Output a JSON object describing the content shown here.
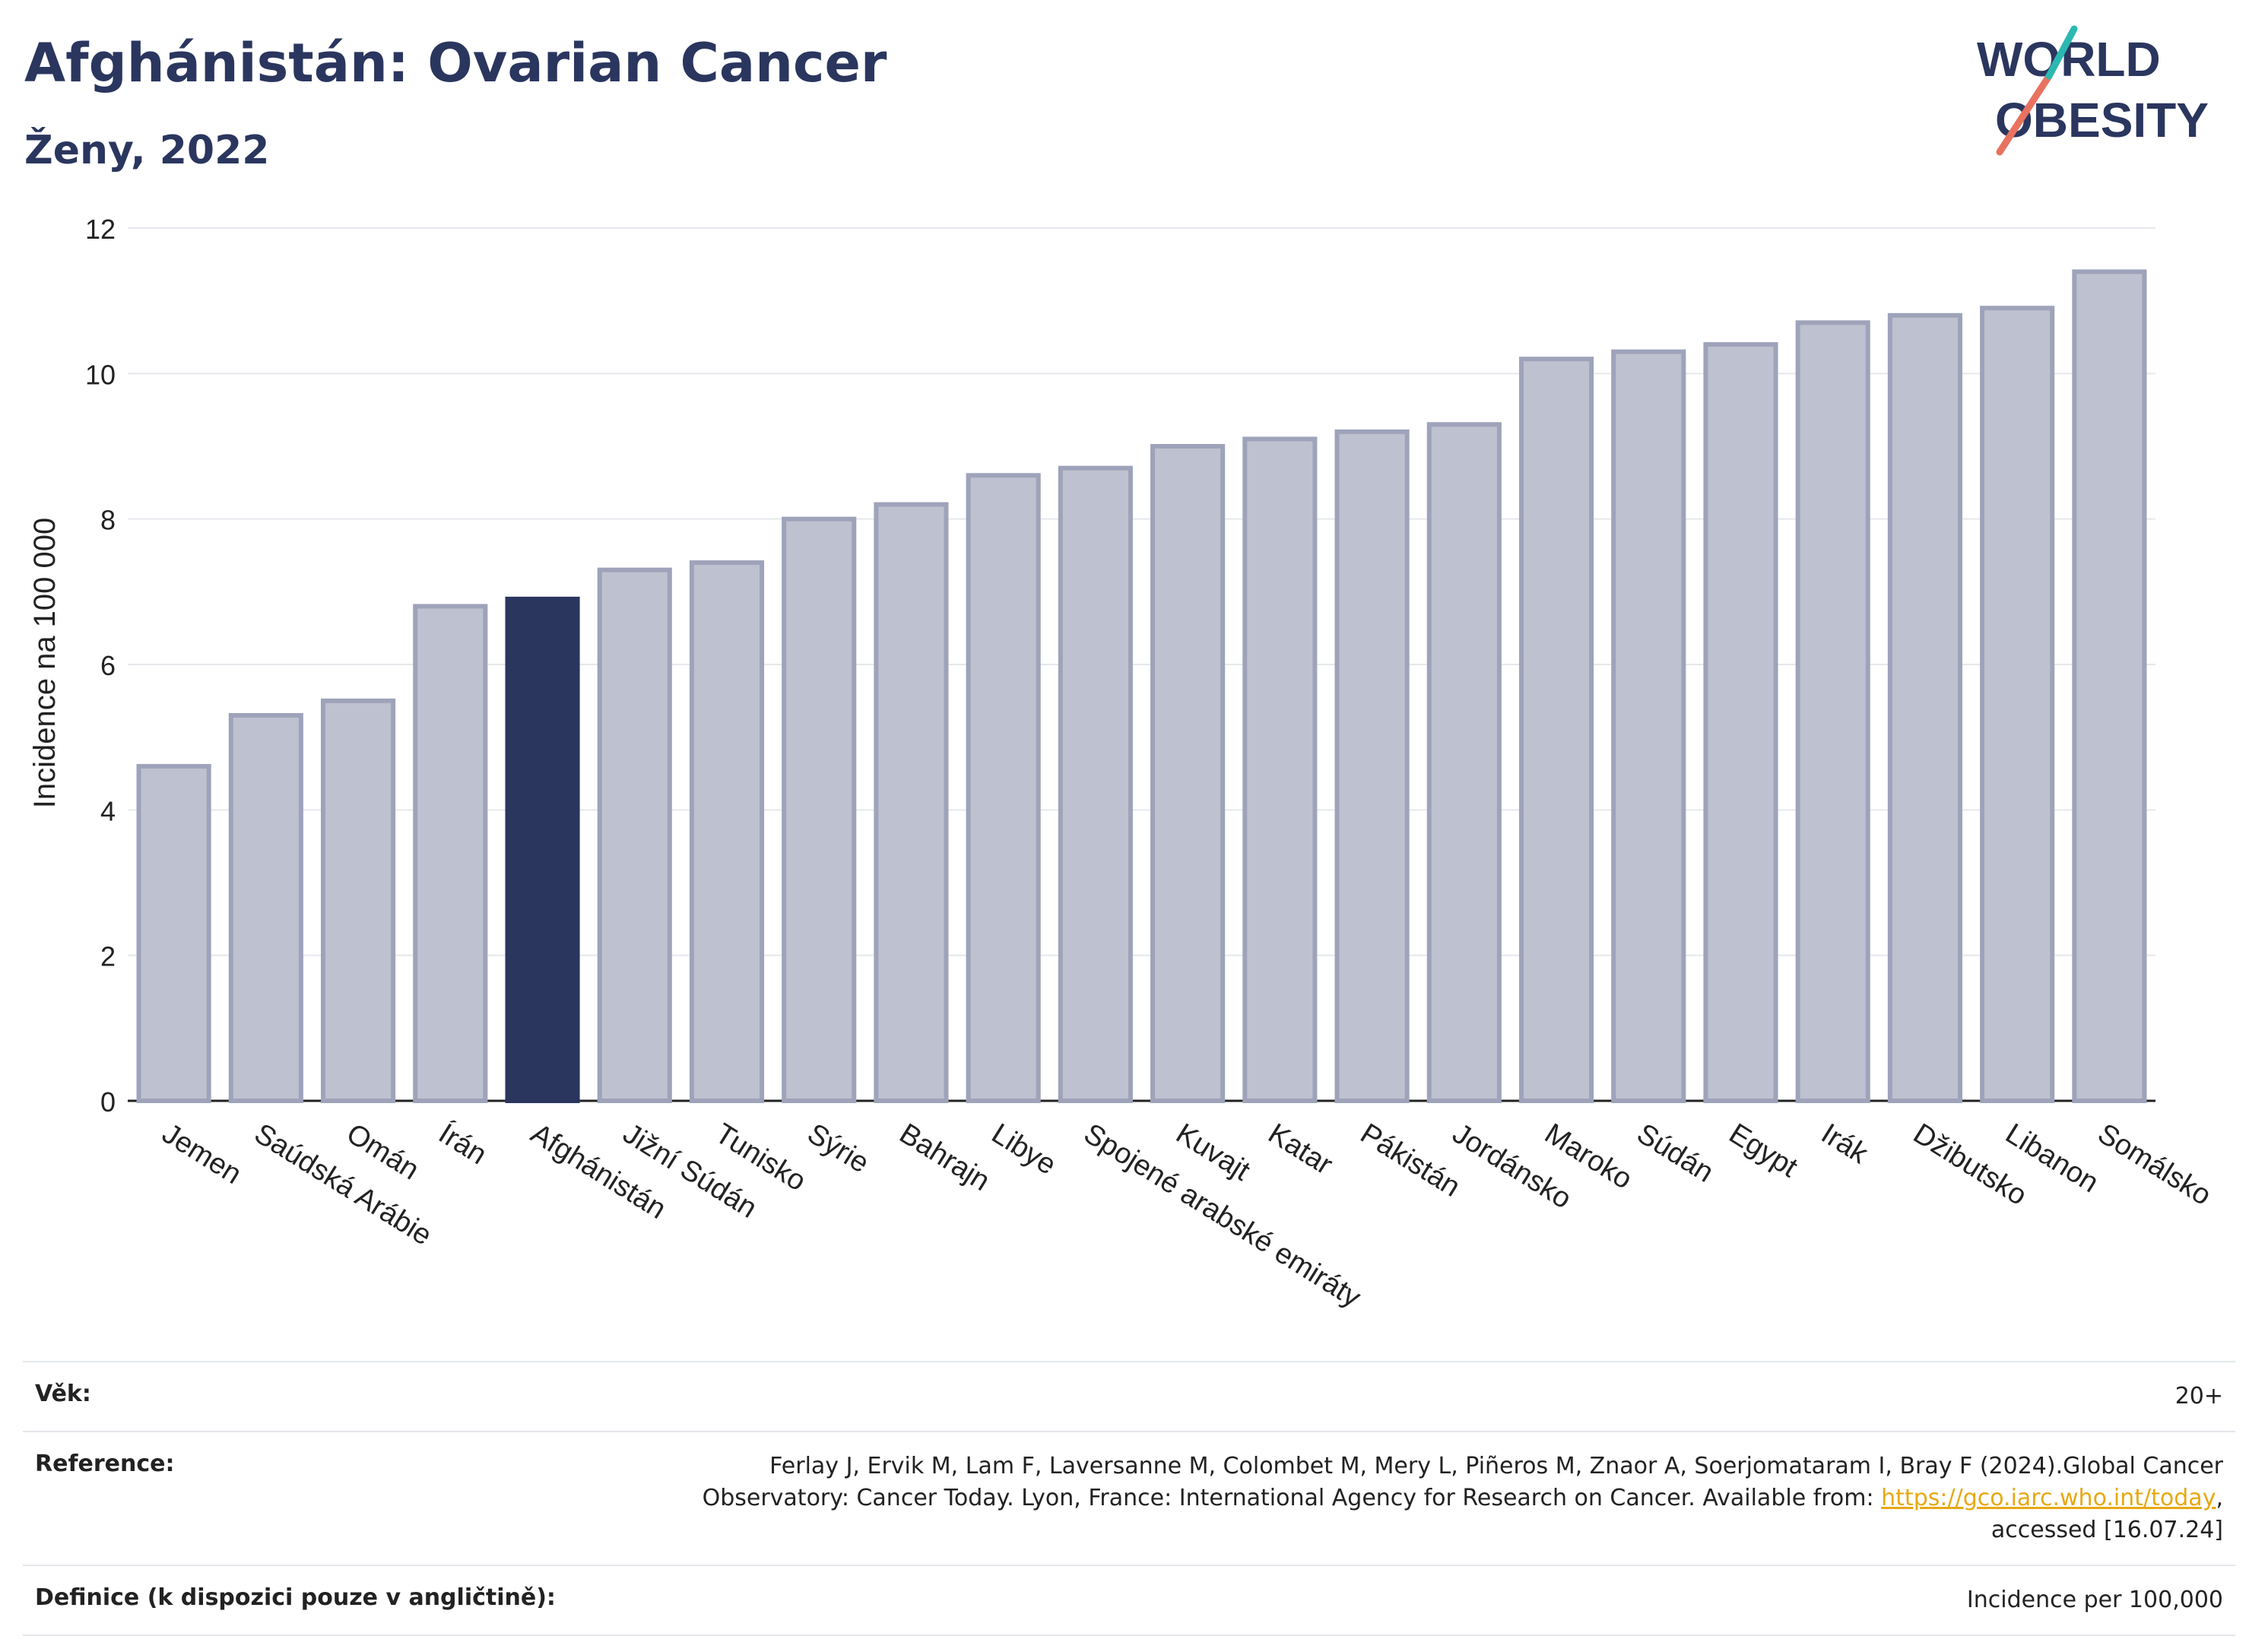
{
  "header": {
    "title": "Afghánistán: Ovarian Cancer",
    "subtitle": "Ženy, 2022"
  },
  "logo": {
    "line1": "WORLD",
    "line2": "OBESITY"
  },
  "chart_data": {
    "type": "bar",
    "ylabel": "Incidence na 100 000",
    "xlabel": "",
    "ylim": [
      0,
      12
    ],
    "yticks": [
      0,
      2,
      4,
      6,
      8,
      10,
      12
    ],
    "grid": true,
    "highlight": "Afghánistán",
    "colors": {
      "bar": "#bec1cf",
      "bar_edge": "#9ea3ba",
      "highlight": "#2b365f"
    },
    "categories": [
      "Jemen",
      "Saúdská Arábie",
      "Omán",
      "Írán",
      "Afghánistán",
      "Jižní Súdán",
      "Tunisko",
      "Sýrie",
      "Bahrajn",
      "Libye",
      "Spojené arabské emiráty",
      "Kuvajt",
      "Katar",
      "Pákistán",
      "Jordánsko",
      "Maroko",
      "Súdán",
      "Egypt",
      "Irák",
      "Džibutsko",
      "Libanon",
      "Somálsko"
    ],
    "values": [
      4.6,
      5.3,
      5.5,
      6.8,
      6.9,
      7.3,
      7.4,
      8.0,
      8.2,
      8.6,
      8.7,
      9.0,
      9.1,
      9.2,
      9.3,
      10.2,
      10.3,
      10.4,
      10.7,
      10.8,
      10.9,
      11.4
    ]
  },
  "footer": {
    "age_label": "Věk:",
    "age_value": "20+",
    "reference_label": "Reference:",
    "reference_text_before": "Ferlay J, Ervik M, Lam F, Laversanne M, Colombet M, Mery L, Piñeros M, Znaor A, Soerjomataram I, Bray F (2024).Global Cancer Observatory: Cancer Today. Lyon, France: International Agency for Research on Cancer. Available from: ",
    "reference_link": "https://gco.iarc.who.int/today",
    "reference_text_after": ", accessed [16.07.24]",
    "definition_label": "Definice (k dispozici pouze v angličtině):",
    "definition_value": "Incidence per 100,000"
  }
}
